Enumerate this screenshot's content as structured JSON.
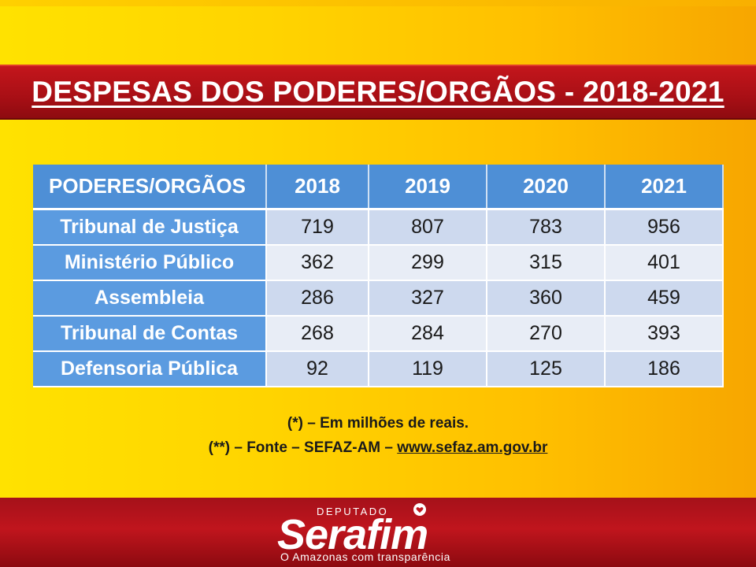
{
  "title": "DESPESAS DOS PODERES/ORGÃOS - 2018-2021",
  "table": {
    "headers": [
      "PODERES/ORGÃOS",
      "2018",
      "2019",
      "2020",
      "2021"
    ],
    "rows": [
      {
        "label": "Tribunal de Justiça",
        "values": [
          "719",
          "807",
          "783",
          "956"
        ]
      },
      {
        "label": "Ministério Público",
        "values": [
          "362",
          "299",
          "315",
          "401"
        ]
      },
      {
        "label": "Assembleia",
        "values": [
          "286",
          "327",
          "360",
          "459"
        ]
      },
      {
        "label": "Tribunal de Contas",
        "values": [
          "268",
          "284",
          "270",
          "393"
        ]
      },
      {
        "label": "Defensoria Pública",
        "values": [
          "92",
          "119",
          "125",
          "186"
        ]
      }
    ]
  },
  "notes": {
    "line1": "(*) – Em milhões de reais.",
    "line2_prefix": "(**) – Fonte – SEFAZ-AM – ",
    "line2_link": "www.sefaz.am.gov.br"
  },
  "footer": {
    "logo_top": "DEPUTADO",
    "logo_name": "Serafim",
    "logo_tagline": "O Amazonas com transparência"
  },
  "colors": {
    "title_bar": "#c4161c",
    "table_header": "#4e8fd6",
    "row_label": "#5b9be0",
    "footer": "#c0151d"
  }
}
